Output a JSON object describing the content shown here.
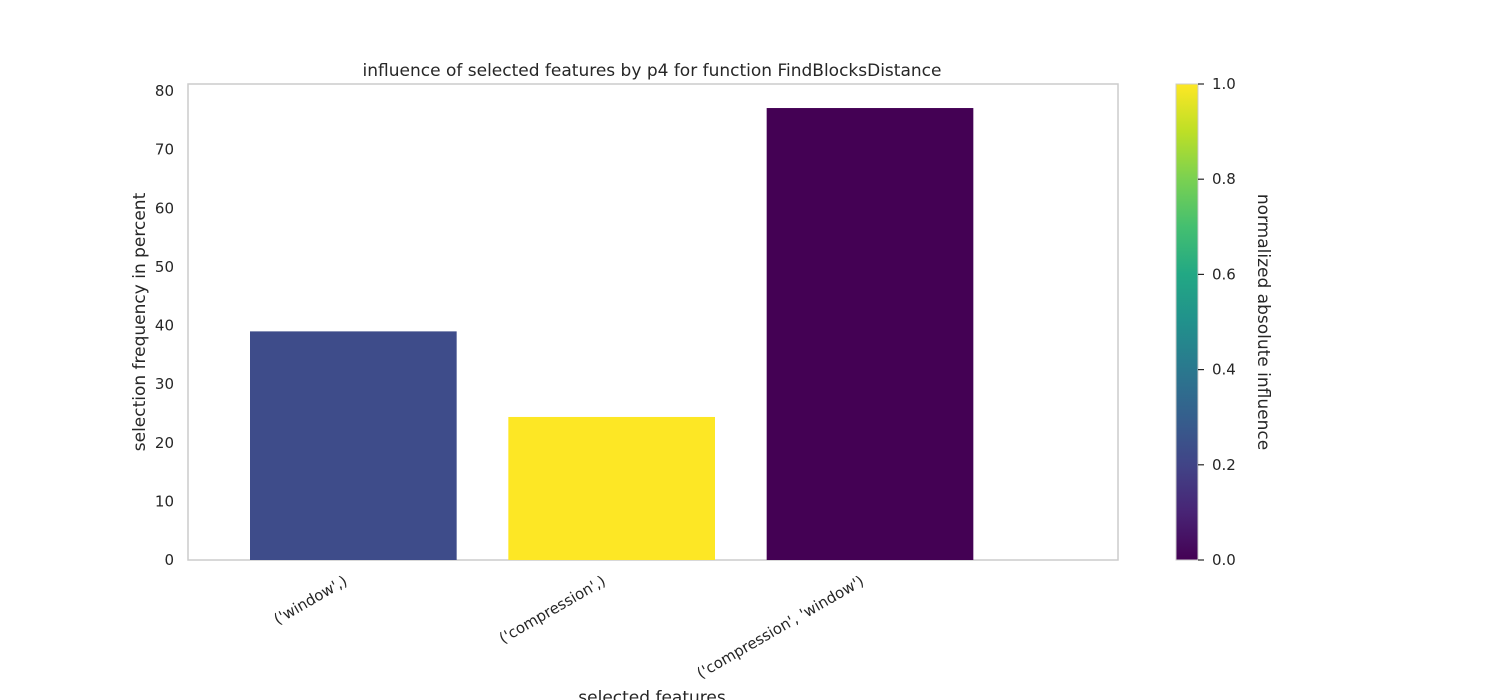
{
  "chart_data": {
    "type": "bar",
    "title": "influence of selected features by p4 for function FindBlocksDistance",
    "xlabel": "selected features",
    "ylabel": "selection frequency in percent",
    "categories": [
      "('window',)",
      "('compression',)",
      "('compression', 'window')"
    ],
    "values": [
      39.0,
      24.4,
      77.1
    ],
    "color_values": [
      0.22,
      1.0,
      0.0
    ],
    "bar_colors": [
      "#3e4c8a",
      "#fde725",
      "#440154"
    ],
    "ylim": [
      0,
      81.2
    ],
    "yticks": [
      0,
      10,
      20,
      30,
      40,
      50,
      60,
      70,
      80
    ],
    "grid": false,
    "legend": "none",
    "colorbar": {
      "label": "normalized absolute influence",
      "colormap": "viridis",
      "range": [
        0.0,
        1.0
      ],
      "ticks": [
        "0.0",
        "0.2",
        "0.4",
        "0.6",
        "0.8",
        "1.0"
      ]
    }
  }
}
